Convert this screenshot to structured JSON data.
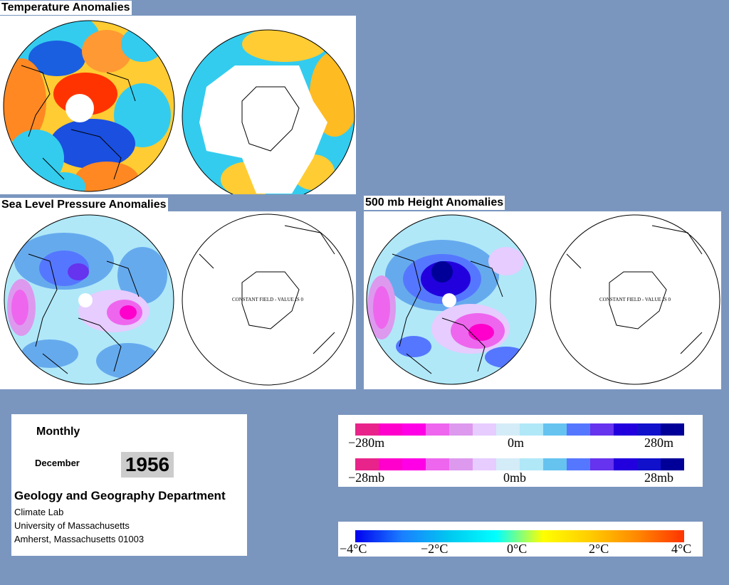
{
  "panels": {
    "temperature": {
      "title": "Temperature Anomalies"
    },
    "slp": {
      "title": "Sea Level Pressure Anomalies",
      "south_note": "CONSTANT FIELD - VALUE IS 0"
    },
    "height500": {
      "title": "500 mb Height Anomalies",
      "south_note": "CONSTANT FIELD - VALUE IS 0"
    }
  },
  "info": {
    "period": "Monthly",
    "month": "December",
    "year": "1956",
    "department": "Geology and Geography Department",
    "lab": "Climate Lab",
    "university": "University of Massachusetts",
    "address": "Amherst, Massachusetts 01003"
  },
  "legend_height": {
    "labels": [
      "−280m",
      "0m",
      "280m"
    ],
    "colors": [
      "#e8248a",
      "#ff00cc",
      "#ff00e6",
      "#ee66ee",
      "#dd99ee",
      "#e6ccff",
      "#d4ecf7",
      "#b0e8f8",
      "#66c3f0",
      "#5577ff",
      "#6633ee",
      "#2200dd",
      "#1111cc",
      "#000099"
    ]
  },
  "legend_slp": {
    "labels": [
      "−28mb",
      "0mb",
      "28mb"
    ],
    "colors": [
      "#e8248a",
      "#ff00cc",
      "#ff00e6",
      "#ee66ee",
      "#dd99ee",
      "#e6ccff",
      "#d4ecf7",
      "#b0e8f8",
      "#66c3f0",
      "#5577ff",
      "#6633ee",
      "#2200dd",
      "#1111cc",
      "#000099"
    ]
  },
  "legend_temp": {
    "labels": [
      "−4°C",
      "−2°C",
      "0°C",
      "2°C",
      "4°C"
    ],
    "gradient": [
      "#0000ee",
      "#1a7fff",
      "#00c8f0",
      "#00ffff",
      "#ffff00",
      "#ffcc00",
      "#ff8800",
      "#ff3300"
    ]
  }
}
